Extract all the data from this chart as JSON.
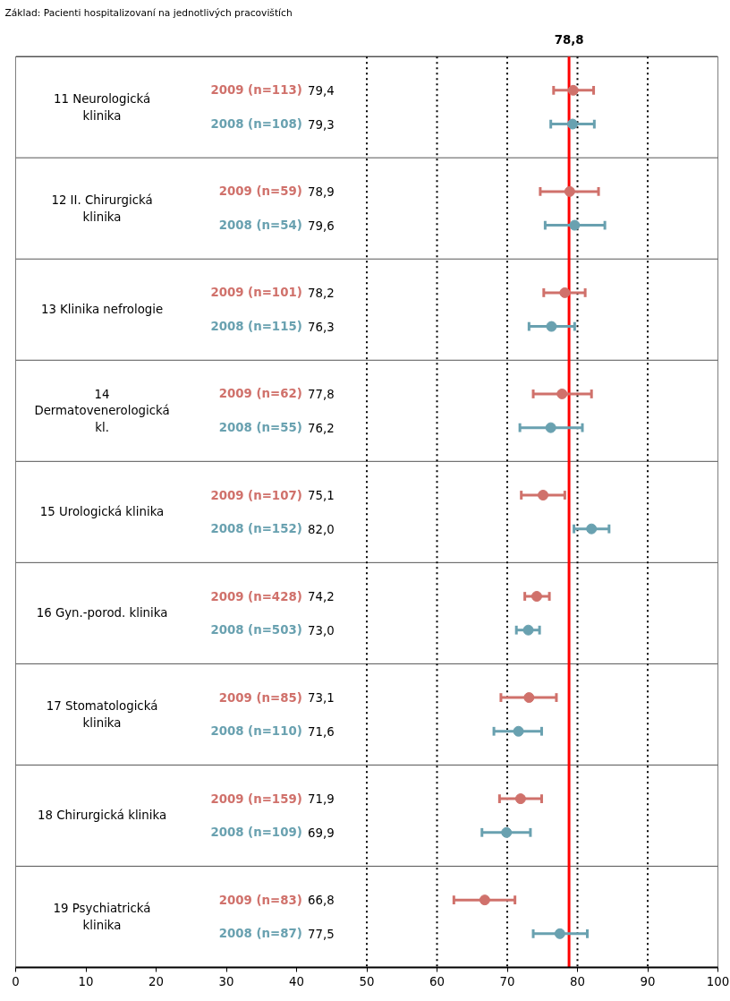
{
  "chart_data": {
    "type": "scatter",
    "orientation": "horizontal",
    "marker": "circle",
    "categories": [
      "2009 (n=113) 79,4",
      "2008 (n=108) 79,3",
      "2009 (n=59) 78,9",
      "2008 (n=54) 79,6",
      "2009 (n=101) 78,2",
      "2008 (n=115) 76,3",
      "2009 (n=62) 77,8",
      "2008 (n=55) 76,2",
      "2009 (n=107) 75,1",
      "2008 (n=152) 82,0",
      "2009 (n=428) 74,2",
      "2008 (n=503) 73,0",
      "2009 (n=85) 73,1",
      "2008 (n=110) 71,6",
      "2009 (n=159) 71,9",
      "2008 (n=109) 69,9",
      "2009 (n=83) 66,8",
      "2008 (n=87) 77,5"
    ],
    "values": [
      79.4,
      79.3,
      78.9,
      79.6,
      78.2,
      76.3,
      77.8,
      76.2,
      75.1,
      82.0,
      74.2,
      73.0,
      73.1,
      71.6,
      71.9,
      69.9,
      66.8,
      77.5
    ],
    "colors": [
      "#d0716b",
      "#69a1b0",
      "#d0716b",
      "#69a1b0",
      "#d0716b",
      "#69a1b0",
      "#d0716b",
      "#69a1b0",
      "#d0716b",
      "#69a1b0",
      "#d0716b",
      "#69a1b0",
      "#d0716b",
      "#69a1b0",
      "#d0716b",
      "#69a1b0",
      "#d0716b",
      "#69a1b0"
    ],
    "errors": [
      [
        76.6,
        82.3
      ],
      [
        76.2,
        82.4
      ],
      [
        74.7,
        83.0
      ],
      [
        75.4,
        83.9
      ],
      [
        75.2,
        81.1
      ],
      [
        73.1,
        79.6
      ],
      [
        73.7,
        82.0
      ],
      [
        71.8,
        80.7
      ],
      [
        72.0,
        78.2
      ],
      [
        79.5,
        84.5
      ],
      [
        72.5,
        76.0
      ],
      [
        71.3,
        74.6
      ],
      [
        69.1,
        77.0
      ],
      [
        68.1,
        74.9
      ],
      [
        68.9,
        74.9
      ],
      [
        66.4,
        73.3
      ],
      [
        62.4,
        71.1
      ],
      [
        73.7,
        81.4
      ]
    ],
    "xlim": [
      0,
      100
    ],
    "xticks": [
      0,
      10,
      20,
      30,
      40,
      50,
      60,
      70,
      80,
      90,
      100
    ],
    "grid": false,
    "ref_lines": [
      {
        "axis": "x",
        "value": 50,
        "color": "#000000",
        "line_style": "dotted"
      },
      {
        "axis": "x",
        "value": 60,
        "color": "#000000",
        "line_style": "dotted"
      },
      {
        "axis": "x",
        "value": 70,
        "color": "#000000",
        "line_style": "dotted"
      },
      {
        "axis": "x",
        "value": 80,
        "color": "#000000",
        "line_style": "dotted"
      },
      {
        "axis": "x",
        "value": 90,
        "color": "#000000",
        "line_style": "dotted"
      },
      {
        "axis": "x",
        "value": 78.8,
        "label": "78,8",
        "color": "#ff0000",
        "line_style": "solid"
      }
    ],
    "annotations": [
      "Základ: Pacienti hospitalizovaní na jednotlivých pracovištích",
      "11 Neurologická\nklinika",
      "12 II. Chirurgická\nklinika",
      "13 Klinika nefrologie",
      "14\nDermatovenerologická\nkl.",
      "15 Urologická klinika",
      "16 Gyn.-porod. klinika",
      "17 Stomatologická\nklinika",
      "18 Chirurgická klinika",
      "19 Psychiatrická\nklinika"
    ]
  }
}
